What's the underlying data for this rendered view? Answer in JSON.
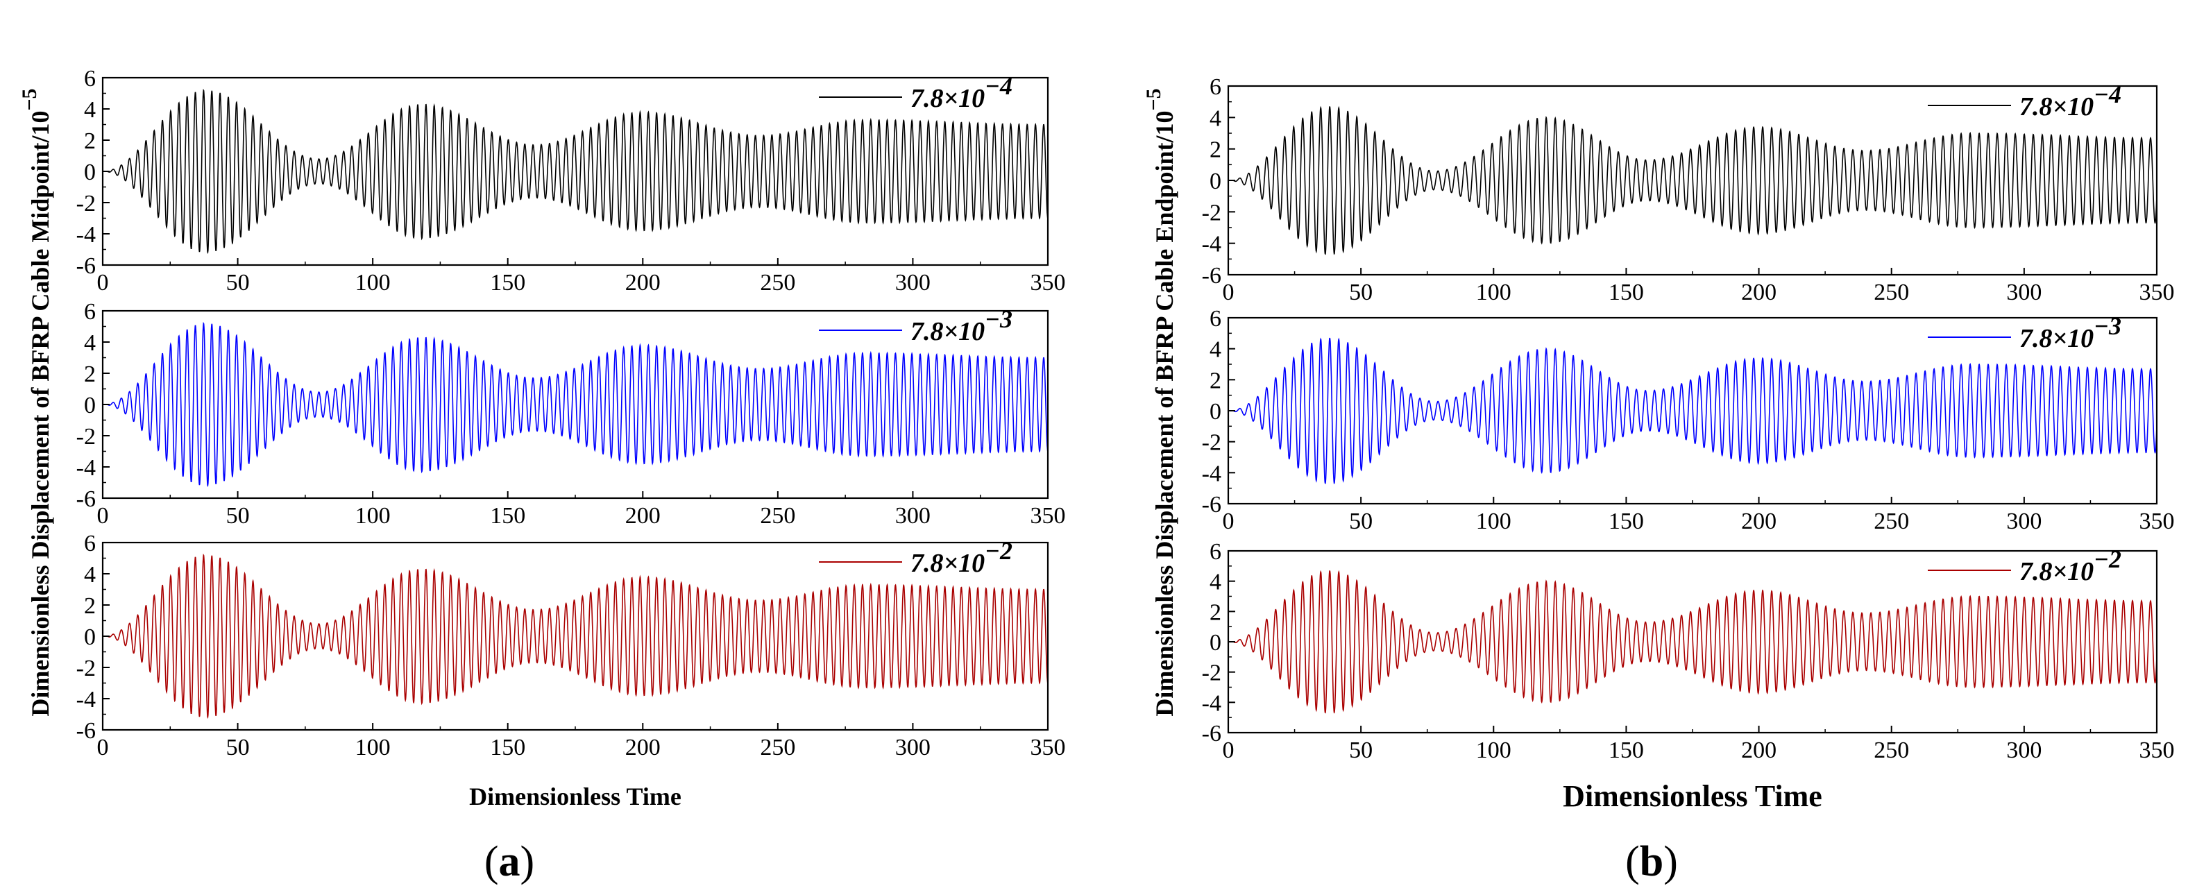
{
  "chart_data": [
    {
      "id": "a",
      "type": "line",
      "panel_label": {
        "open": "(",
        "letter": "a",
        "close": ")"
      },
      "xlabel": "Dimensionless Time",
      "ylabel": "Dimensionless Displacement of BFRP Cable Midpoint/10",
      "ylabel_exponent": "−5",
      "xlim": [
        0,
        350
      ],
      "ylim": [
        -6,
        6
      ],
      "x_ticks": [
        "0",
        "50",
        "100",
        "150",
        "200",
        "250",
        "300",
        "350"
      ],
      "y_ticks": [
        "6",
        "4",
        "2",
        "0",
        "-2",
        "-4",
        "-6"
      ],
      "grid": false,
      "legend_position": "top-right",
      "subplots": [
        {
          "series": [
            {
              "name_base": "7.8×10",
              "name_exp": "−4",
              "color": "#000000",
              "peak_amplitude": 5.2,
              "period": 3.05
            }
          ]
        },
        {
          "series": [
            {
              "name_base": "7.8×10",
              "name_exp": "−3",
              "color": "#0000ff",
              "peak_amplitude": 5.2,
              "period": 3.05
            }
          ]
        },
        {
          "series": [
            {
              "name_base": "7.8×10",
              "name_exp": "−2",
              "color": "#aa0000",
              "peak_amplitude": 5.2,
              "period": 3.05
            }
          ]
        }
      ],
      "envelope_peaks": [
        [
          38,
          5.2
        ],
        [
          118,
          4.3
        ],
        [
          200,
          3.8
        ],
        [
          282,
          3.3
        ],
        [
          350,
          3.0
        ]
      ],
      "envelope_troughs": [
        [
          0,
          0.0
        ],
        [
          80,
          0.8
        ],
        [
          160,
          1.7
        ],
        [
          243,
          2.3
        ]
      ]
    },
    {
      "id": "b",
      "type": "line",
      "panel_label": {
        "open": "(",
        "letter": "b",
        "close": ")"
      },
      "xlabel": "Dimensionless Time",
      "ylabel": "Dimensionless Displacement of BFRP Cable Endpoint/10",
      "ylabel_exponent": "−5",
      "xlim": [
        0,
        350
      ],
      "ylim": [
        -6,
        6
      ],
      "x_ticks": [
        "0",
        "50",
        "100",
        "150",
        "200",
        "250",
        "300",
        "350"
      ],
      "y_ticks": [
        "6",
        "4",
        "2",
        "0",
        "-2",
        "-4",
        "-6"
      ],
      "grid": false,
      "legend_position": "top-right",
      "subplots": [
        {
          "series": [
            {
              "name_base": "7.8×10",
              "name_exp": "−4",
              "color": "#000000",
              "peak_amplitude": 4.7,
              "period": 3.4
            }
          ]
        },
        {
          "series": [
            {
              "name_base": "7.8×10",
              "name_exp": "−3",
              "color": "#0000ff",
              "peak_amplitude": 4.7,
              "period": 3.4
            }
          ]
        },
        {
          "series": [
            {
              "name_base": "7.8×10",
              "name_exp": "−2",
              "color": "#aa0000",
              "peak_amplitude": 4.7,
              "period": 3.4
            }
          ]
        }
      ],
      "envelope_peaks": [
        [
          38,
          4.7
        ],
        [
          120,
          4.0
        ],
        [
          200,
          3.4
        ],
        [
          280,
          3.0
        ],
        [
          350,
          2.7
        ]
      ],
      "envelope_troughs": [
        [
          0,
          0.0
        ],
        [
          78,
          0.6
        ],
        [
          158,
          1.3
        ],
        [
          240,
          1.9
        ]
      ]
    }
  ]
}
